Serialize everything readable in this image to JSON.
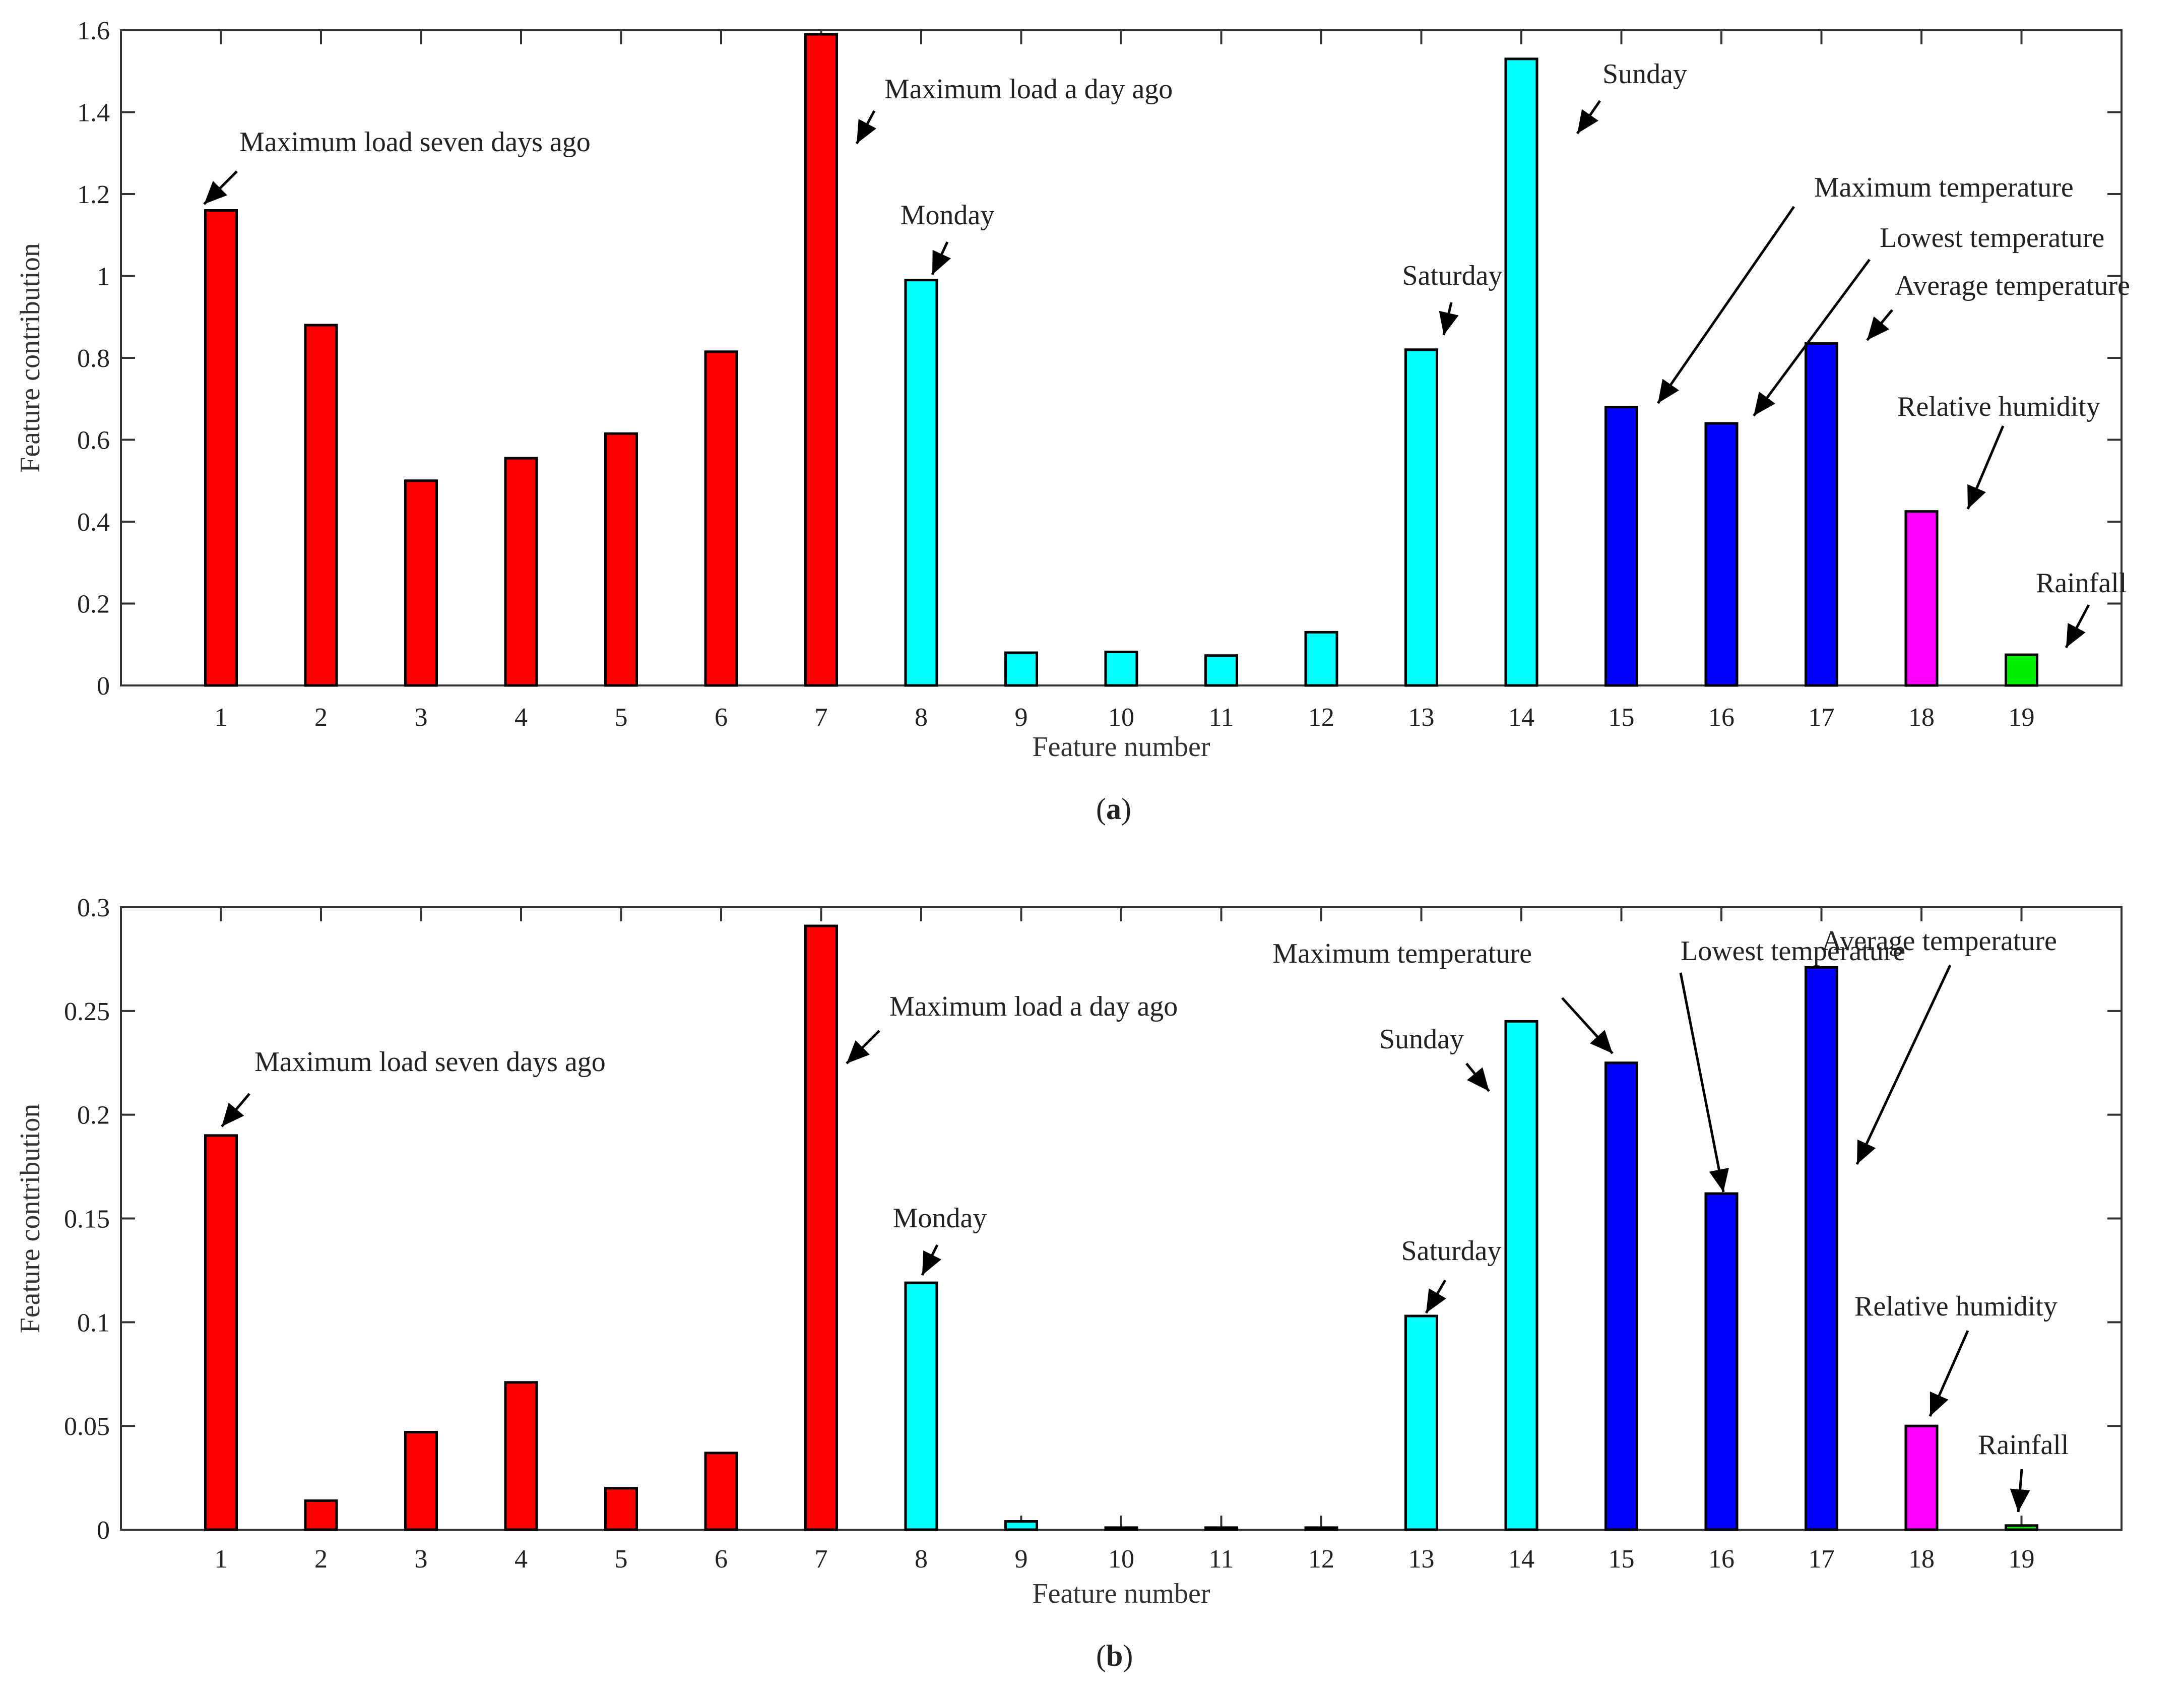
{
  "chart_data": [
    {
      "type": "bar",
      "panel_label": "a",
      "xlabel": "Feature number",
      "ylabel": "Feature contribution",
      "ylim": [
        0,
        1.6
      ],
      "yticks": [
        0,
        0.2,
        0.4,
        0.6,
        0.8,
        1,
        1.2,
        1.4,
        1.6
      ],
      "ytick_labels": [
        "0",
        "0.2",
        "0.4",
        "0.6",
        "0.8",
        "1",
        "1.2",
        "1.4",
        "1.6"
      ],
      "categories": [
        "1",
        "2",
        "3",
        "4",
        "5",
        "6",
        "7",
        "8",
        "9",
        "10",
        "11",
        "12",
        "13",
        "14",
        "15",
        "16",
        "17",
        "18",
        "19"
      ],
      "values": [
        1.16,
        0.88,
        0.5,
        0.555,
        0.615,
        0.815,
        1.59,
        0.99,
        0.08,
        0.082,
        0.073,
        0.13,
        0.82,
        1.53,
        0.68,
        0.64,
        0.835,
        0.425,
        0.075
      ],
      "bar_colors": [
        "#ff0000",
        "#ff0000",
        "#ff0000",
        "#ff0000",
        "#ff0000",
        "#ff0000",
        "#ff0000",
        "#00ffff",
        "#00ffff",
        "#00ffff",
        "#00ffff",
        "#00ffff",
        "#00ffff",
        "#00ffff",
        "#0000ff",
        "#0000ff",
        "#0000ff",
        "#ff00ff",
        "#00ee00"
      ],
      "annotations": [
        {
          "text": "Maximum load seven days ago",
          "bar": 1
        },
        {
          "text": "Maximum load a day ago",
          "bar": 7
        },
        {
          "text": "Monday",
          "bar": 8
        },
        {
          "text": "Saturday",
          "bar": 13
        },
        {
          "text": "Sunday",
          "bar": 14
        },
        {
          "text": "Maximum temperature",
          "bar": 15
        },
        {
          "text": "Lowest temperature",
          "bar": 16
        },
        {
          "text": "Average temperature",
          "bar": 17
        },
        {
          "text": "Relative humidity",
          "bar": 18
        },
        {
          "text": "Rainfall",
          "bar": 19
        }
      ]
    },
    {
      "type": "bar",
      "panel_label": "b",
      "xlabel": "Feature number",
      "ylabel": "Feature contribution",
      "ylim": [
        0,
        0.3
      ],
      "yticks": [
        0,
        0.05,
        0.1,
        0.15,
        0.2,
        0.25,
        0.3
      ],
      "ytick_labels": [
        "0",
        "0.05",
        "0.1",
        "0.15",
        "0.2",
        "0.25",
        "0.3"
      ],
      "categories": [
        "1",
        "2",
        "3",
        "4",
        "5",
        "6",
        "7",
        "8",
        "9",
        "10",
        "11",
        "12",
        "13",
        "14",
        "15",
        "16",
        "17",
        "18",
        "19"
      ],
      "values": [
        0.19,
        0.014,
        0.047,
        0.071,
        0.02,
        0.037,
        0.291,
        0.119,
        0.004,
        0.001,
        0.001,
        0.001,
        0.103,
        0.245,
        0.225,
        0.162,
        0.271,
        0.05,
        0.002
      ],
      "bar_colors": [
        "#ff0000",
        "#ff0000",
        "#ff0000",
        "#ff0000",
        "#ff0000",
        "#ff0000",
        "#ff0000",
        "#00ffff",
        "#00ffff",
        "#00ffff",
        "#00ffff",
        "#00ffff",
        "#00ffff",
        "#00ffff",
        "#0000ff",
        "#0000ff",
        "#0000ff",
        "#ff00ff",
        "#00ee00"
      ],
      "annotations": [
        {
          "text": "Maximum load seven days ago",
          "bar": 1
        },
        {
          "text": "Maximum load a day ago",
          "bar": 7
        },
        {
          "text": "Monday",
          "bar": 8
        },
        {
          "text": "Saturday",
          "bar": 13
        },
        {
          "text": "Sunday",
          "bar": 14
        },
        {
          "text": "Maximum temperature",
          "bar": 15
        },
        {
          "text": "Lowest temperature",
          "bar": 16
        },
        {
          "text": "Average temperature",
          "bar": 17
        },
        {
          "text": "Relative humidity",
          "bar": 18
        },
        {
          "text": "Rainfall",
          "bar": 19
        }
      ]
    }
  ]
}
